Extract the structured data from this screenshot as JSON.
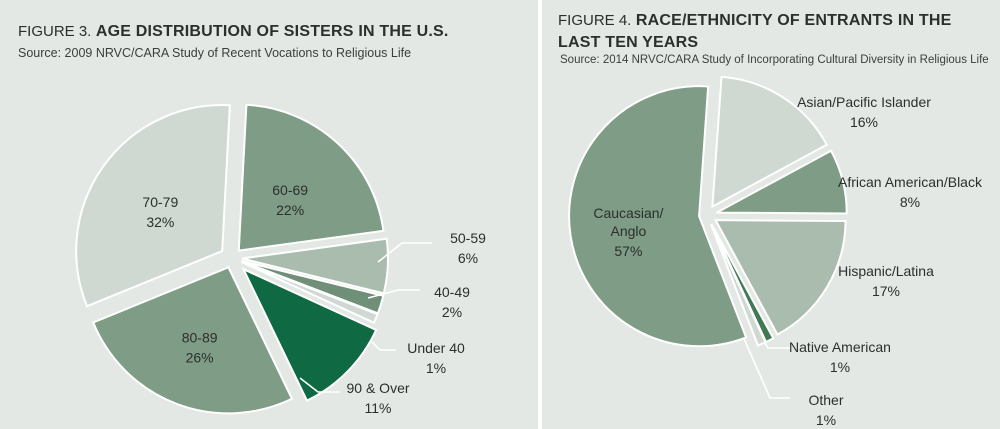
{
  "colors": {
    "panel_bg": "#e3e8e4",
    "light": "#cfd8d1",
    "medium": "#7f9c86",
    "pale": "#a9bcae",
    "dark": "#0f6a43",
    "label_text": "#2b2f2d"
  },
  "chart_data": [
    {
      "type": "pie",
      "figure_label": "FIGURE 3.",
      "title": "AGE DISTRIBUTION OF SISTERS IN THE U.S.",
      "source": "Source: 2009 NRVC/CARA Study of Recent Vocations to Religious Life",
      "slices": [
        {
          "label": "60-69",
          "value": 22,
          "value_label": "22%",
          "color": "#7f9c86"
        },
        {
          "label": "50-59",
          "value": 6,
          "value_label": "6%",
          "color": "#a9bcae"
        },
        {
          "label": "40-49",
          "value": 2,
          "value_label": "2%",
          "color": "#6f8f78"
        },
        {
          "label": "Under 40",
          "value": 1,
          "value_label": "1%",
          "color": "#cfd8d1"
        },
        {
          "label": "90 & Over",
          "value": 11,
          "value_label": "11%",
          "color": "#0f6a43"
        },
        {
          "label": "80-89",
          "value": 26,
          "value_label": "26%",
          "color": "#7f9c86"
        },
        {
          "label": "70-79",
          "value": 32,
          "value_label": "32%",
          "color": "#cfd8d1"
        }
      ]
    },
    {
      "type": "pie",
      "figure_label": "FIGURE 4.",
      "title_line1": "RACE/ETHNICITY OF ENTRANTS IN THE",
      "title_line2": "LAST TEN YEARS",
      "source": "Source: 2014 NRVC/CARA Study of Incorporating Cultural Diversity in Religious Life",
      "slices": [
        {
          "label": "Asian/Pacific Islander",
          "value": 16,
          "value_label": "16%",
          "color": "#cfd8d1"
        },
        {
          "label": "African American/Black",
          "value": 8,
          "value_label": "8%",
          "color": "#7f9c86"
        },
        {
          "label": "Hispanic/Latina",
          "value": 17,
          "value_label": "17%",
          "color": "#a9bcae"
        },
        {
          "label": "Native American",
          "value": 1,
          "value_label": "1%",
          "color": "#3f7a55"
        },
        {
          "label": "Other",
          "value": 1,
          "value_label": "1%",
          "color": "#cfd8d1"
        },
        {
          "label": "Caucasian/ Anglo",
          "value": 57,
          "value_label": "57%",
          "color": "#7f9c86"
        }
      ]
    }
  ]
}
